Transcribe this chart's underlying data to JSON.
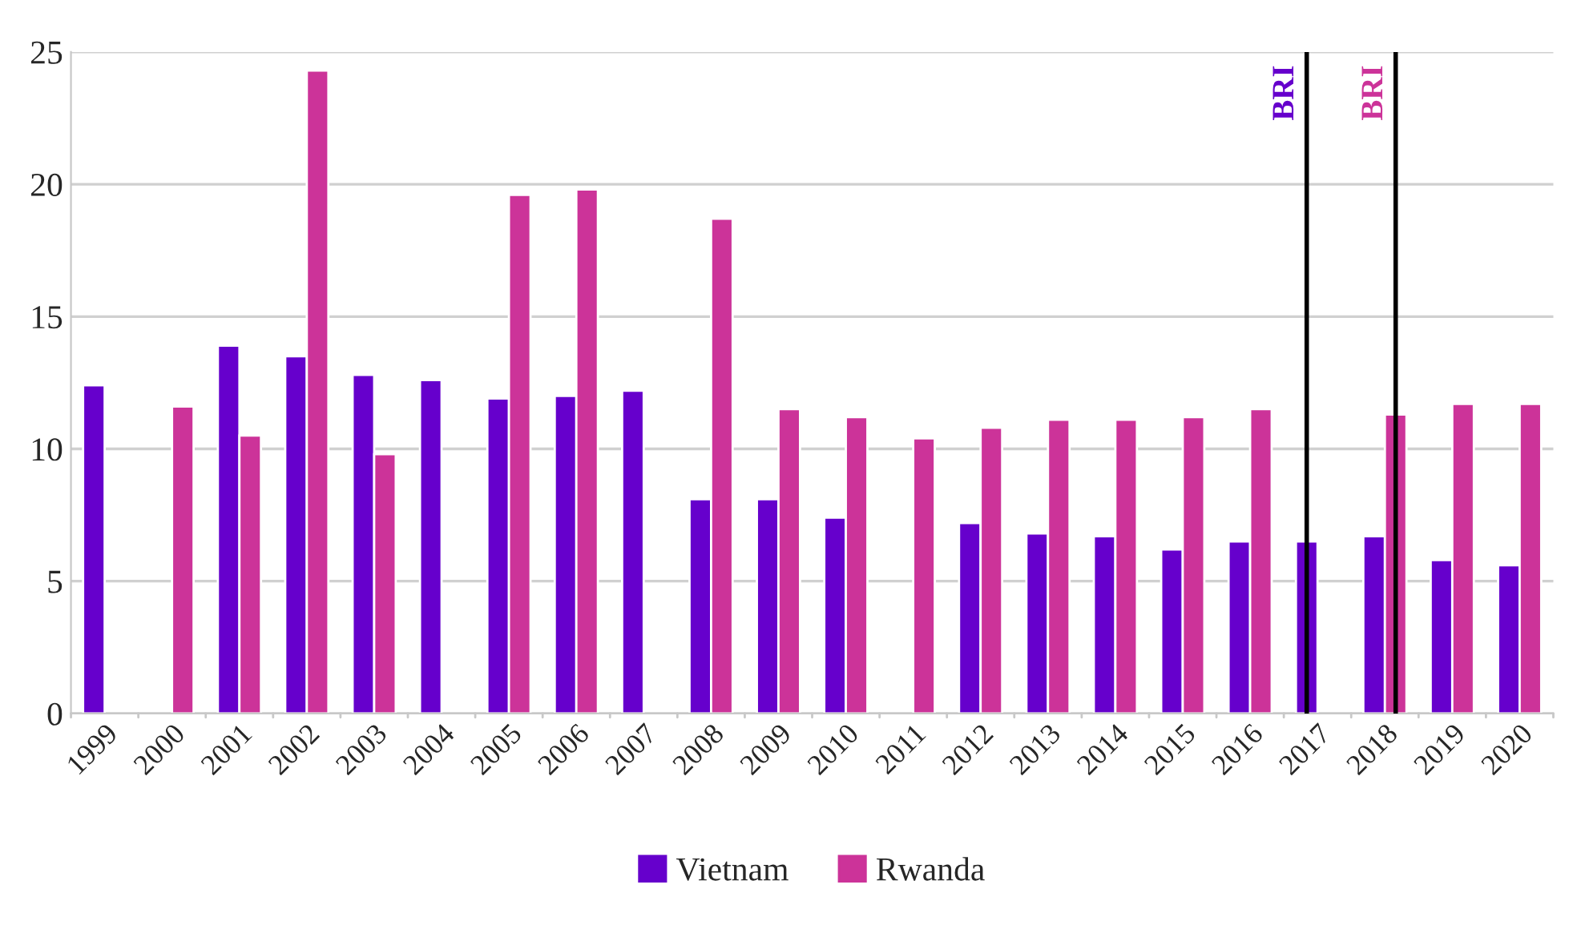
{
  "chart_data": {
    "type": "bar",
    "categories": [
      "1999",
      "2000",
      "2001",
      "2002",
      "2003",
      "2004",
      "2005",
      "2006",
      "2007",
      "2008",
      "2009",
      "2010",
      "2011",
      "2012",
      "2013",
      "2014",
      "2015",
      "2016",
      "2017",
      "2018",
      "2019",
      "2020"
    ],
    "series": [
      {
        "name": "Vietnam",
        "color": "#6600cc",
        "values": [
          12.4,
          null,
          13.9,
          13.5,
          12.8,
          12.6,
          11.9,
          12.0,
          12.2,
          8.1,
          8.1,
          7.4,
          null,
          7.2,
          6.8,
          6.7,
          6.2,
          6.5,
          6.5,
          6.7,
          5.8,
          5.6
        ]
      },
      {
        "name": "Rwanda",
        "color": "#cc3399",
        "values": [
          null,
          11.6,
          10.5,
          24.3,
          9.8,
          null,
          19.6,
          19.8,
          null,
          18.7,
          11.5,
          11.2,
          10.4,
          10.8,
          11.1,
          11.1,
          11.2,
          11.5,
          null,
          11.3,
          11.7,
          11.7
        ]
      }
    ],
    "ylim": [
      0,
      25
    ],
    "yticks": [
      0,
      5,
      10,
      15,
      20,
      25
    ],
    "grid": "y",
    "legend": "bottom",
    "ref_lines": [
      {
        "axis": "x",
        "value": "2017",
        "label": "BRI",
        "color": "#000000"
      },
      {
        "axis": "x",
        "value": "2018",
        "label": "BRI",
        "color": "#000000"
      }
    ]
  }
}
